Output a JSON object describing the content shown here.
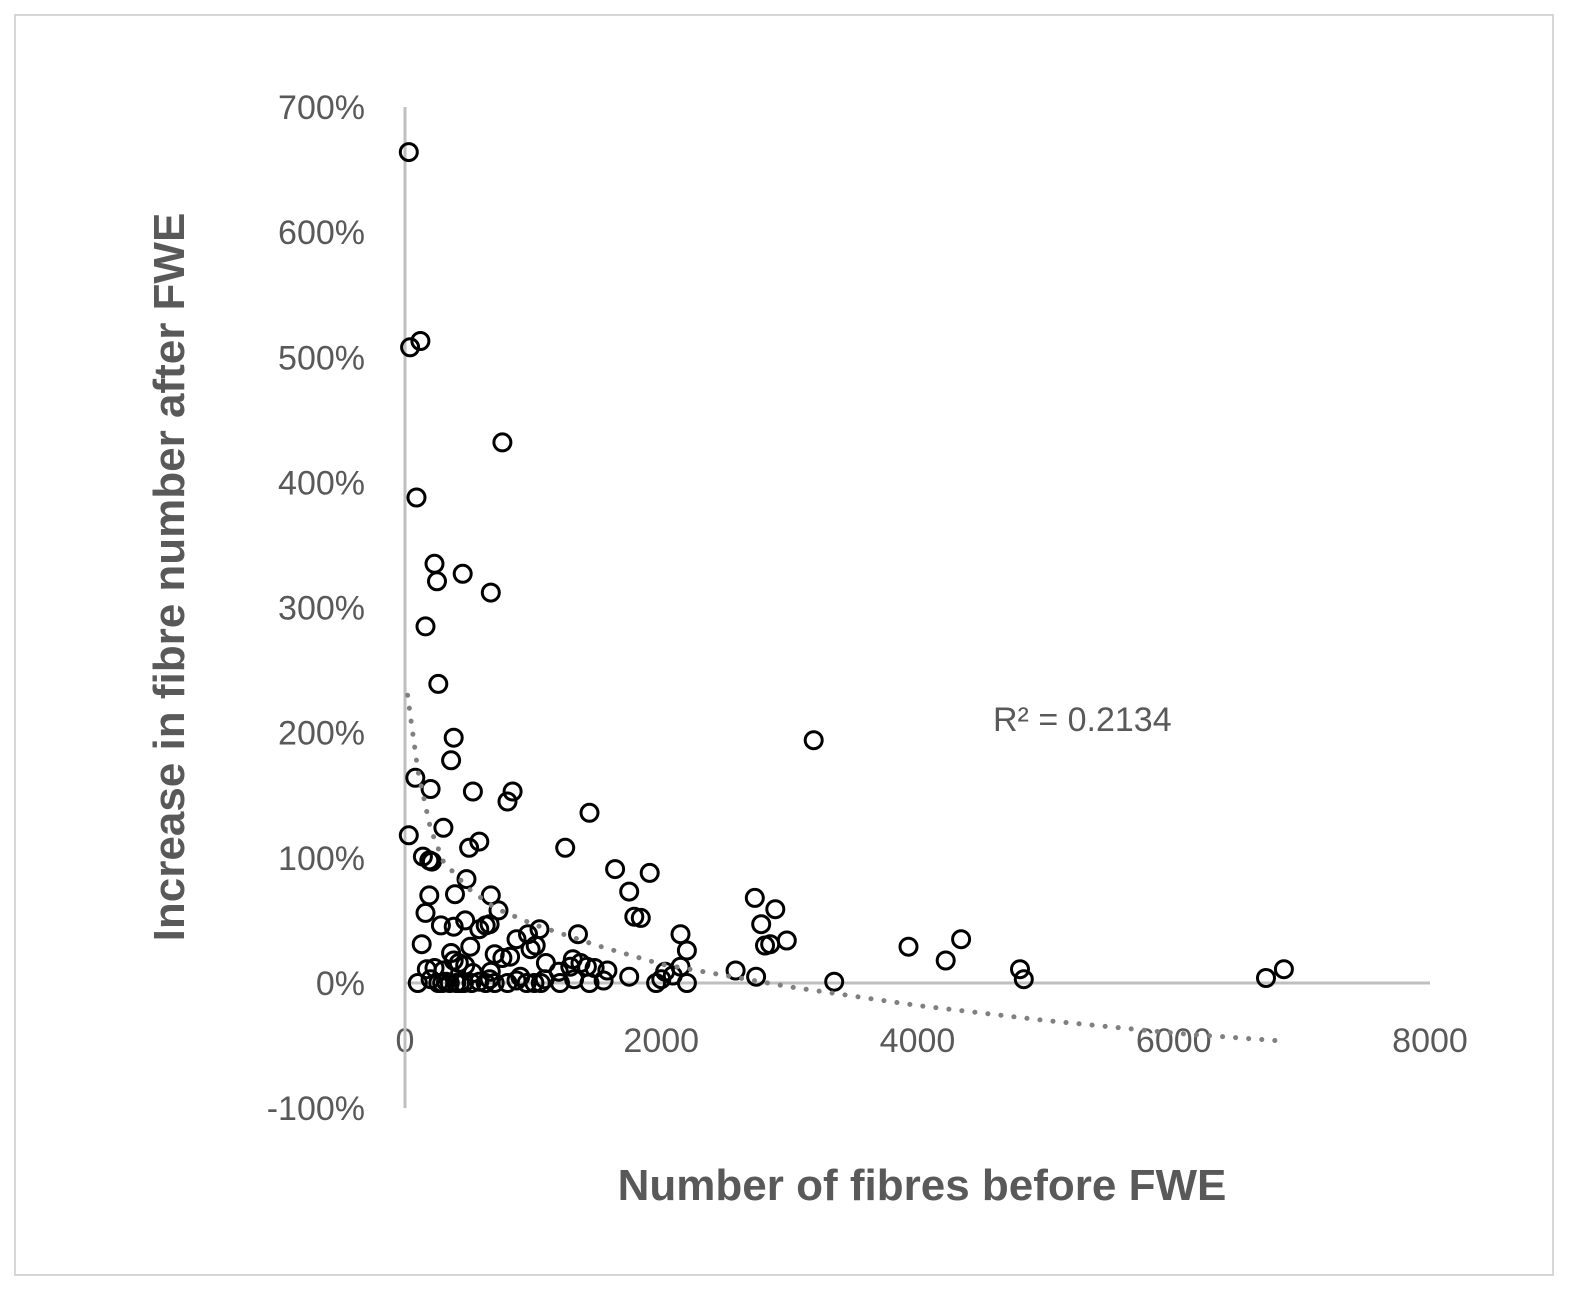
{
  "chart_data": {
    "type": "scatter",
    "xlabel": "Number of fibres before FWE",
    "ylabel": "Increase in fibre number after FWE",
    "xlim": [
      0,
      8000
    ],
    "ylim": [
      -100,
      700
    ],
    "x_ticks": [
      "0",
      "2000",
      "4000",
      "6000",
      "8000"
    ],
    "y_ticks": [
      "-100%",
      "0%",
      "100%",
      "200%",
      "300%",
      "400%",
      "500%",
      "600%",
      "700%"
    ],
    "y_unit": "%",
    "grid": false,
    "legend": "none",
    "trendline": {
      "style": "dotted",
      "type": "power",
      "equation_label": "R² = 0.2134",
      "x": [
        20,
        100,
        200,
        300,
        500,
        700,
        1000,
        1500,
        2000,
        3000,
        4000,
        5000,
        6000,
        6800
      ],
      "y": [
        230,
        170,
        123,
        97,
        75,
        60,
        47,
        30,
        15,
        -3,
        -18,
        -30,
        -40,
        -46
      ]
    },
    "points": [
      [
        30,
        664
      ],
      [
        40,
        508
      ],
      [
        120,
        513
      ],
      [
        90,
        388
      ],
      [
        760,
        432
      ],
      [
        230,
        335
      ],
      [
        250,
        321
      ],
      [
        450,
        327
      ],
      [
        670,
        312
      ],
      [
        160,
        285
      ],
      [
        260,
        239
      ],
      [
        380,
        196
      ],
      [
        360,
        178
      ],
      [
        3190,
        194
      ],
      [
        80,
        164
      ],
      [
        200,
        155
      ],
      [
        530,
        153
      ],
      [
        840,
        153
      ],
      [
        800,
        145
      ],
      [
        1440,
        136
      ],
      [
        30,
        118
      ],
      [
        300,
        124
      ],
      [
        500,
        108
      ],
      [
        580,
        113
      ],
      [
        1250,
        108
      ],
      [
        140,
        101
      ],
      [
        190,
        98
      ],
      [
        210,
        97
      ],
      [
        480,
        83
      ],
      [
        1640,
        91
      ],
      [
        1910,
        88
      ],
      [
        190,
        70
      ],
      [
        390,
        71
      ],
      [
        670,
        70
      ],
      [
        1750,
        73
      ],
      [
        2730,
        68
      ],
      [
        2890,
        59
      ],
      [
        1790,
        53
      ],
      [
        1840,
        52
      ],
      [
        160,
        56
      ],
      [
        470,
        50
      ],
      [
        730,
        58
      ],
      [
        2780,
        47
      ],
      [
        280,
        46
      ],
      [
        380,
        45
      ],
      [
        580,
        43
      ],
      [
        630,
        46
      ],
      [
        660,
        47
      ],
      [
        1050,
        43
      ],
      [
        1350,
        39
      ],
      [
        2150,
        39
      ],
      [
        960,
        39
      ],
      [
        870,
        35
      ],
      [
        2810,
        30
      ],
      [
        2850,
        31
      ],
      [
        2980,
        34
      ],
      [
        3930,
        29
      ],
      [
        4340,
        35
      ],
      [
        4220,
        18
      ],
      [
        130,
        31
      ],
      [
        360,
        24
      ],
      [
        510,
        29
      ],
      [
        700,
        23
      ],
      [
        760,
        20
      ],
      [
        820,
        21
      ],
      [
        980,
        27
      ],
      [
        1020,
        30
      ],
      [
        1100,
        16
      ],
      [
        1310,
        19
      ],
      [
        1370,
        16
      ],
      [
        2200,
        26
      ],
      [
        1290,
        13
      ],
      [
        1420,
        13
      ],
      [
        170,
        11
      ],
      [
        230,
        12
      ],
      [
        300,
        10
      ],
      [
        380,
        18
      ],
      [
        420,
        16
      ],
      [
        470,
        14
      ],
      [
        530,
        8
      ],
      [
        670,
        9
      ],
      [
        1200,
        9
      ],
      [
        1480,
        12
      ],
      [
        1580,
        10
      ],
      [
        2030,
        9
      ],
      [
        2150,
        13
      ],
      [
        2090,
        6
      ],
      [
        2580,
        10
      ],
      [
        2740,
        5
      ],
      [
        4800,
        11
      ],
      [
        6720,
        4
      ],
      [
        6860,
        11
      ],
      [
        100,
        0
      ],
      [
        200,
        3
      ],
      [
        260,
        0
      ],
      [
        290,
        0
      ],
      [
        320,
        1
      ],
      [
        350,
        0
      ],
      [
        400,
        0
      ],
      [
        430,
        0
      ],
      [
        460,
        0
      ],
      [
        520,
        0
      ],
      [
        580,
        1
      ],
      [
        630,
        0
      ],
      [
        660,
        3
      ],
      [
        700,
        0
      ],
      [
        800,
        0
      ],
      [
        870,
        2
      ],
      [
        900,
        5
      ],
      [
        950,
        0
      ],
      [
        1010,
        0
      ],
      [
        1060,
        0
      ],
      [
        1090,
        3
      ],
      [
        1210,
        0
      ],
      [
        1320,
        3
      ],
      [
        1440,
        0
      ],
      [
        1550,
        2
      ],
      [
        1750,
        5
      ],
      [
        1960,
        0
      ],
      [
        2000,
        3
      ],
      [
        2200,
        0
      ],
      [
        3350,
        1
      ],
      [
        4830,
        3
      ]
    ]
  }
}
